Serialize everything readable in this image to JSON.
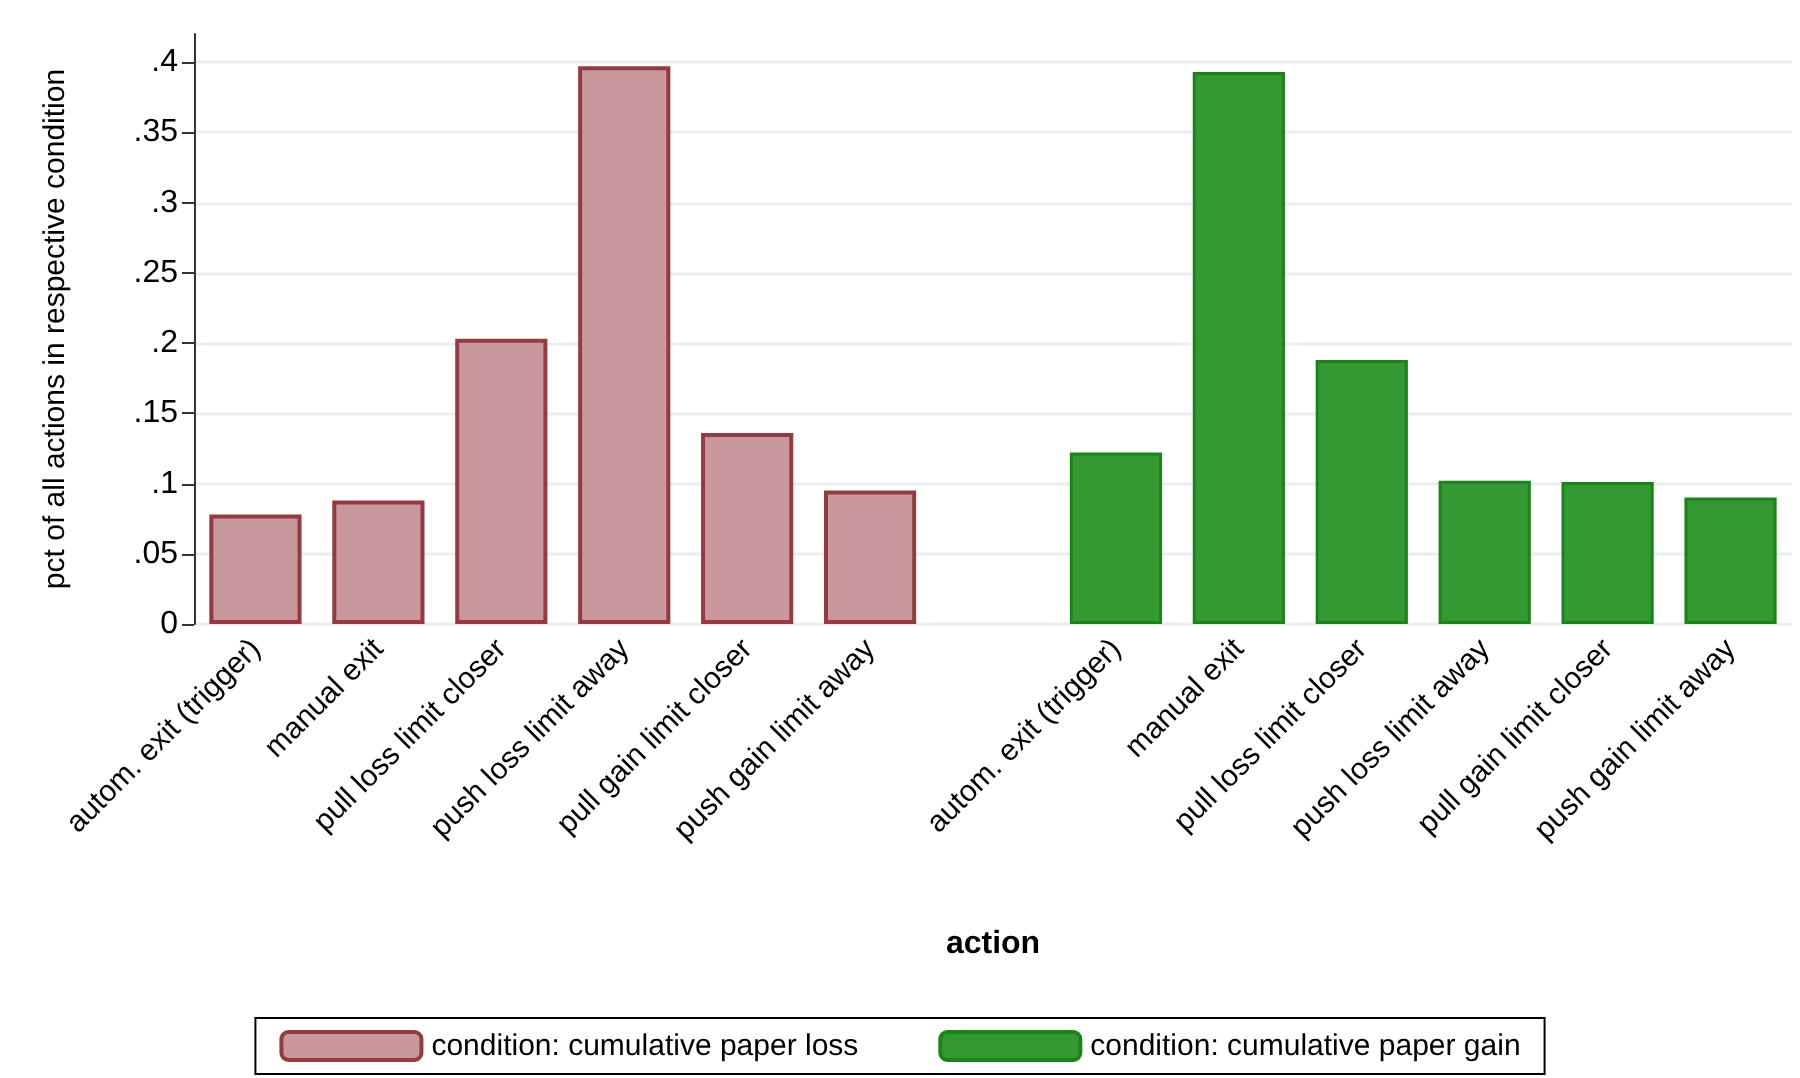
{
  "chart_data": {
    "type": "bar",
    "categories": [
      "autom. exit (trigger)",
      "manual exit",
      "pull loss limit closer",
      "push loss limit away",
      "pull gain limit closer",
      "push gain limit away",
      null,
      "autom. exit (trigger)",
      "manual exit",
      "pull loss limit closer",
      "push loss limit away",
      "pull gain limit closer",
      "push gain limit away"
    ],
    "series": [
      {
        "name": "condition: cumulative paper loss",
        "color": "#c8989c",
        "values": [
          0.078,
          0.088,
          0.203,
          0.397,
          0.136,
          0.095,
          null,
          null,
          null,
          null,
          null,
          null,
          null
        ]
      },
      {
        "name": "condition: cumulative paper gain",
        "color": "#349933",
        "values": [
          null,
          null,
          null,
          null,
          null,
          null,
          null,
          0.122,
          0.393,
          0.188,
          0.102,
          0.101,
          0.09
        ]
      }
    ],
    "xlabel": "action",
    "ylabel": "pct of all actions in respective condition",
    "ylim": [
      0,
      0.42
    ],
    "yticks": [
      0,
      {
        "value": 0.05,
        "label": ".05"
      },
      {
        "value": 0.1,
        "label": ".1"
      },
      {
        "value": 0.15,
        "label": ".15"
      },
      {
        "value": 0.2,
        "label": ".2"
      },
      {
        "value": 0.25,
        "label": ".25"
      },
      {
        "value": 0.3,
        "label": ".3"
      },
      {
        "value": 0.35,
        "label": ".35"
      },
      {
        "value": 0.4,
        "label": ".4"
      }
    ],
    "grid": "y",
    "legend": "bottom"
  }
}
